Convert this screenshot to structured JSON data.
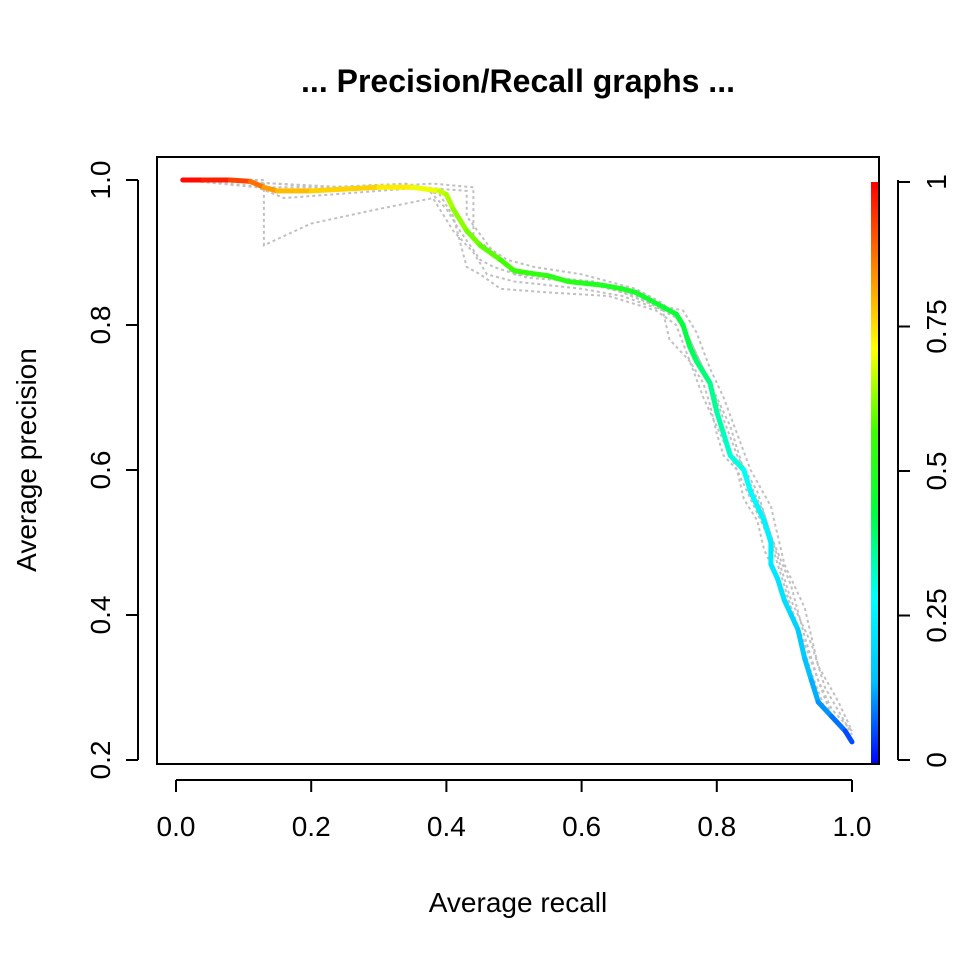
{
  "chart_data": {
    "type": "line",
    "title": "... Precision/Recall graphs ...",
    "xlabel": "Average recall",
    "ylabel": "Average precision",
    "xlim": [
      0.0,
      1.0
    ],
    "ylim": [
      0.2,
      1.0
    ],
    "x_ticks": [
      "0.0",
      "0.2",
      "0.4",
      "0.6",
      "0.8",
      "1.0"
    ],
    "y_ticks": [
      "0.2",
      "0.4",
      "0.6",
      "0.8",
      "1.0"
    ],
    "colorbar": {
      "min": 0,
      "max": 1,
      "ticks": [
        "0",
        "0.25",
        "0.5",
        "0.75",
        "1"
      ],
      "stops": [
        "#0000ff",
        "#00c0ff",
        "#00ffff",
        "#00ff40",
        "#40ff00",
        "#ffff00",
        "#ff8000",
        "#ff0000"
      ]
    },
    "grid": false,
    "average_curve": {
      "x": [
        0.01,
        0.04,
        0.08,
        0.11,
        0.13,
        0.15,
        0.2,
        0.3,
        0.35,
        0.39,
        0.4,
        0.41,
        0.43,
        0.45,
        0.48,
        0.5,
        0.52,
        0.55,
        0.58,
        0.6,
        0.63,
        0.66,
        0.68,
        0.7,
        0.72,
        0.74,
        0.75,
        0.76,
        0.77,
        0.79,
        0.8,
        0.81,
        0.82,
        0.84,
        0.85,
        0.86,
        0.87,
        0.88,
        0.88,
        0.89,
        0.9,
        0.91,
        0.92,
        0.93,
        0.94,
        0.95,
        0.97,
        0.99,
        1.0
      ],
      "y": [
        1.0,
        1.0,
        1.0,
        0.998,
        0.99,
        0.985,
        0.985,
        0.99,
        0.99,
        0.985,
        0.98,
        0.96,
        0.93,
        0.91,
        0.89,
        0.875,
        0.872,
        0.868,
        0.86,
        0.858,
        0.855,
        0.85,
        0.845,
        0.835,
        0.825,
        0.815,
        0.8,
        0.77,
        0.75,
        0.72,
        0.68,
        0.65,
        0.62,
        0.6,
        0.57,
        0.55,
        0.53,
        0.5,
        0.47,
        0.45,
        0.42,
        0.4,
        0.38,
        0.34,
        0.31,
        0.28,
        0.26,
        0.24,
        0.225
      ],
      "cutoffs": [
        1.0,
        0.98,
        0.95,
        0.9,
        0.85,
        0.8,
        0.78,
        0.75,
        0.72,
        0.68,
        0.66,
        0.64,
        0.62,
        0.6,
        0.58,
        0.56,
        0.54,
        0.53,
        0.52,
        0.51,
        0.5,
        0.49,
        0.48,
        0.47,
        0.46,
        0.45,
        0.44,
        0.42,
        0.4,
        0.38,
        0.36,
        0.34,
        0.32,
        0.3,
        0.28,
        0.27,
        0.26,
        0.25,
        0.24,
        0.23,
        0.22,
        0.2,
        0.18,
        0.16,
        0.14,
        0.12,
        0.1,
        0.07,
        0.04
      ]
    },
    "fold_curves": [
      {
        "x": [
          0.01,
          0.13,
          0.13,
          0.2,
          0.3,
          0.38,
          0.41,
          0.44,
          0.46,
          0.5,
          0.55,
          0.6,
          0.66,
          0.72,
          0.73,
          0.76,
          0.78,
          0.79,
          0.8,
          0.81,
          0.83,
          0.84,
          0.86,
          0.87,
          0.89,
          0.91,
          0.93,
          0.95,
          0.97,
          1.0
        ],
        "y": [
          1.0,
          1.0,
          0.91,
          0.94,
          0.96,
          0.975,
          0.93,
          0.9,
          0.87,
          0.86,
          0.855,
          0.85,
          0.84,
          0.82,
          0.78,
          0.75,
          0.72,
          0.69,
          0.65,
          0.62,
          0.6,
          0.56,
          0.53,
          0.49,
          0.45,
          0.41,
          0.36,
          0.31,
          0.27,
          0.24
        ]
      },
      {
        "x": [
          0.01,
          0.12,
          0.16,
          0.3,
          0.37,
          0.4,
          0.42,
          0.45,
          0.47,
          0.52,
          0.6,
          0.68,
          0.74,
          0.76,
          0.78,
          0.8,
          0.82,
          0.84,
          0.87,
          0.89,
          0.91,
          0.94,
          0.96,
          1.0
        ],
        "y": [
          1.0,
          0.99,
          0.975,
          0.985,
          0.99,
          0.96,
          0.93,
          0.89,
          0.88,
          0.865,
          0.86,
          0.84,
          0.81,
          0.78,
          0.74,
          0.7,
          0.66,
          0.6,
          0.54,
          0.48,
          0.42,
          0.36,
          0.3,
          0.235
        ]
      },
      {
        "x": [
          0.01,
          0.15,
          0.25,
          0.36,
          0.43,
          0.43,
          0.47,
          0.5,
          0.56,
          0.62,
          0.7,
          0.75,
          0.77,
          0.79,
          0.81,
          0.83,
          0.85,
          0.88,
          0.9,
          0.93,
          0.95,
          0.98,
          1.0
        ],
        "y": [
          1.0,
          0.995,
          0.99,
          0.99,
          0.985,
          0.95,
          0.9,
          0.87,
          0.865,
          0.86,
          0.83,
          0.82,
          0.79,
          0.74,
          0.7,
          0.65,
          0.6,
          0.55,
          0.47,
          0.41,
          0.33,
          0.28,
          0.24
        ]
      },
      {
        "x": [
          0.01,
          0.1,
          0.22,
          0.34,
          0.39,
          0.41,
          0.43,
          0.45,
          0.48,
          0.55,
          0.64,
          0.71,
          0.74,
          0.76,
          0.78,
          0.8,
          0.82,
          0.85,
          0.88,
          0.9,
          0.92,
          0.94,
          0.96,
          1.0
        ],
        "y": [
          1.0,
          0.998,
          0.99,
          0.995,
          0.98,
          0.95,
          0.88,
          0.87,
          0.85,
          0.845,
          0.84,
          0.82,
          0.8,
          0.75,
          0.7,
          0.66,
          0.62,
          0.56,
          0.5,
          0.44,
          0.38,
          0.32,
          0.27,
          0.23
        ]
      },
      {
        "x": [
          0.01,
          0.14,
          0.28,
          0.38,
          0.44,
          0.44,
          0.49,
          0.53,
          0.6,
          0.68,
          0.72,
          0.75,
          0.77,
          0.79,
          0.81,
          0.83,
          0.86,
          0.88,
          0.91,
          0.93,
          0.95,
          0.97,
          1.0
        ],
        "y": [
          1.0,
          0.99,
          0.99,
          0.995,
          0.99,
          0.92,
          0.89,
          0.88,
          0.87,
          0.85,
          0.83,
          0.8,
          0.76,
          0.72,
          0.67,
          0.62,
          0.57,
          0.51,
          0.44,
          0.37,
          0.31,
          0.26,
          0.225
        ]
      }
    ]
  }
}
